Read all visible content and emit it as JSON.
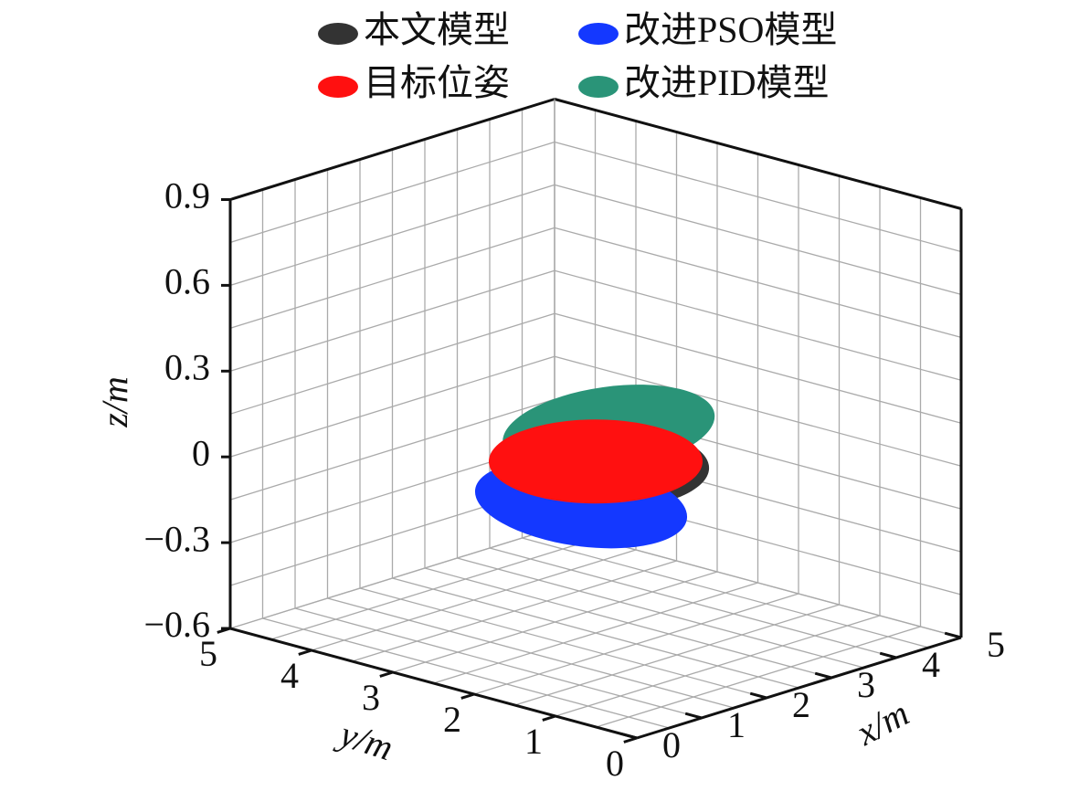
{
  "chart_data": {
    "type": "disc3d",
    "xlabel": "x/m",
    "ylabel": "y/m",
    "zlabel": "z/m",
    "xlim": [
      0,
      5
    ],
    "ylim": [
      0,
      5
    ],
    "zlim": [
      -0.6,
      0.9
    ],
    "xticks": [
      0,
      1,
      2,
      3,
      4,
      5
    ],
    "yticks": [
      0,
      1,
      2,
      3,
      4,
      5
    ],
    "zticks": [
      {
        "value": -0.6,
        "label": "−0.6"
      },
      {
        "value": -0.3,
        "label": "−0.3"
      },
      0,
      0.3,
      0.6,
      0.9
    ],
    "grid": true,
    "series": [
      {
        "name": "本文模型",
        "color": "#333333",
        "x": 2.6,
        "y": 2.5,
        "z": -0.03
      },
      {
        "name": "改进PSO模型",
        "color": "#1438ff",
        "x": 2.4,
        "y": 2.6,
        "z": -0.15
      },
      {
        "name": "目标位姿",
        "color": "#ff1010",
        "x": 2.5,
        "y": 2.5,
        "z": 0
      },
      {
        "name": "改进PID模型",
        "color": "#2a9478",
        "x": 2.7,
        "y": 2.5,
        "z": 0.1
      }
    ]
  }
}
